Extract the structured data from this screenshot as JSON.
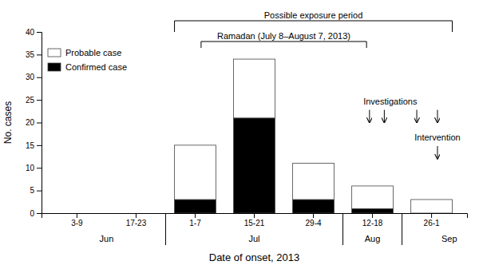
{
  "chart_data": {
    "type": "bar",
    "stacked": true,
    "categories": [
      "3-9",
      "17-23",
      "1-7",
      "15-21",
      "29-4",
      "12-18",
      "26-1"
    ],
    "series": [
      {
        "name": "Confirmed case",
        "color": "#000000",
        "values": [
          0,
          0,
          3,
          21,
          3,
          1,
          0
        ]
      },
      {
        "name": "Probable case",
        "color": "#ffffff",
        "values": [
          0,
          0,
          12,
          13,
          8,
          5,
          3
        ]
      }
    ],
    "ylim": [
      0,
      40
    ],
    "yticks": [
      0,
      5,
      10,
      15,
      20,
      25,
      30,
      35,
      40
    ],
    "ylabel": "No. cases",
    "xlabel": "Date of onset, 2013",
    "annotations": [
      "Possible exposure period",
      "Ramadan (July 8–August 7, 2013)",
      "Investigations",
      "Intervention",
      "Jun",
      "Jul",
      "Aug",
      "Sep"
    ],
    "legend": "upper left",
    "grid": false
  }
}
